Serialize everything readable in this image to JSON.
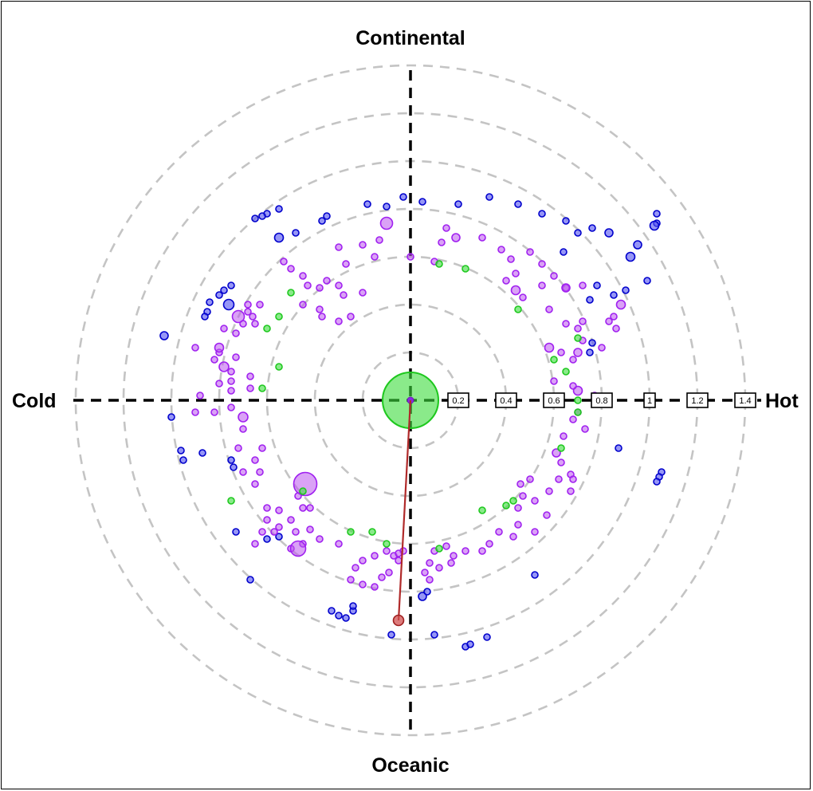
{
  "chart_data": {
    "type": "scatter",
    "title": "",
    "axis_labels": {
      "top": "Continental",
      "bottom": "Oceanic",
      "left": "Cold",
      "right": "Hot"
    },
    "radial_ticks": [
      "0.2",
      "0.4",
      "0.6",
      "0.8",
      "1",
      "1.2",
      "1.4"
    ],
    "radial_tick_values": [
      0.2,
      0.4,
      0.6,
      0.8,
      1.0,
      1.2,
      1.4
    ],
    "rmax": 1.4,
    "grid": true,
    "colors": {
      "purple": "#bb55ee",
      "blue": "#2b2be8",
      "green": "#3cdc3c",
      "red": "#d05050",
      "grid": "#c4c4c4",
      "redline": "#b02a2a"
    },
    "highlight": {
      "origin": [
        0,
        0
      ],
      "point": [
        -0.05,
        -0.92
      ],
      "color": "red"
    },
    "center_marker": {
      "x": 0,
      "y": 0,
      "color": "green",
      "size": 70
    },
    "points": [
      [
        -0.65,
        0.76,
        "blue",
        7
      ],
      [
        -0.6,
        0.78,
        "blue",
        7
      ],
      [
        -0.62,
        0.77,
        "blue",
        7
      ],
      [
        -0.55,
        0.8,
        "blue",
        7
      ],
      [
        -0.18,
        0.82,
        "blue",
        7
      ],
      [
        -0.1,
        0.81,
        "blue",
        7
      ],
      [
        -0.03,
        0.85,
        "blue",
        7
      ],
      [
        0.05,
        0.83,
        "blue",
        7
      ],
      [
        0.2,
        0.82,
        "blue",
        7
      ],
      [
        0.33,
        0.85,
        "blue",
        7
      ],
      [
        0.45,
        0.82,
        "blue",
        7
      ],
      [
        0.55,
        0.78,
        "blue",
        7
      ],
      [
        0.65,
        0.75,
        "blue",
        7
      ],
      [
        0.7,
        0.7,
        "blue",
        7
      ],
      [
        0.76,
        0.72,
        "blue",
        7
      ],
      [
        0.64,
        0.62,
        "blue",
        7
      ],
      [
        0.83,
        0.7,
        "blue",
        9
      ],
      [
        0.95,
        0.65,
        "blue",
        9
      ],
      [
        1.03,
        0.74,
        "blue",
        7
      ],
      [
        1.03,
        0.78,
        "blue",
        7
      ],
      [
        1.02,
        0.73,
        "blue",
        10
      ],
      [
        0.92,
        0.6,
        "blue",
        10
      ],
      [
        0.99,
        0.5,
        "blue",
        7
      ],
      [
        0.78,
        0.48,
        "blue",
        7
      ],
      [
        0.75,
        0.42,
        "blue",
        7
      ],
      [
        0.85,
        0.44,
        "blue",
        7
      ],
      [
        0.9,
        0.46,
        "blue",
        7
      ],
      [
        0.76,
        0.24,
        "blue",
        7
      ],
      [
        0.75,
        0.2,
        "blue",
        7
      ],
      [
        -0.35,
        0.77,
        "blue",
        7
      ],
      [
        -0.37,
        0.75,
        "blue",
        7
      ],
      [
        -0.48,
        0.7,
        "blue",
        7
      ],
      [
        -0.55,
        0.68,
        "blue",
        10
      ],
      [
        -0.75,
        0.48,
        "blue",
        7
      ],
      [
        -0.8,
        0.44,
        "blue",
        7
      ],
      [
        -0.85,
        0.37,
        "blue",
        7
      ],
      [
        -0.86,
        0.35,
        "blue",
        7
      ],
      [
        -0.84,
        0.41,
        "blue",
        7
      ],
      [
        -0.78,
        0.46,
        "blue",
        7
      ],
      [
        -0.76,
        0.4,
        "blue",
        12
      ],
      [
        -1.03,
        0.27,
        "blue",
        9
      ],
      [
        -1.0,
        -0.07,
        "blue",
        7
      ],
      [
        -0.96,
        -0.21,
        "blue",
        7
      ],
      [
        -0.95,
        -0.25,
        "blue",
        7
      ],
      [
        -0.87,
        -0.22,
        "blue",
        7
      ],
      [
        -0.75,
        -0.25,
        "blue",
        7
      ],
      [
        -0.74,
        -0.28,
        "blue",
        7
      ],
      [
        -0.73,
        -0.55,
        "blue",
        7
      ],
      [
        -0.6,
        -0.58,
        "blue",
        7
      ],
      [
        -0.55,
        -0.57,
        "blue",
        7
      ],
      [
        -0.67,
        -0.75,
        "blue",
        7
      ],
      [
        -0.33,
        -0.88,
        "blue",
        7
      ],
      [
        -0.3,
        -0.9,
        "blue",
        7
      ],
      [
        -0.27,
        -0.91,
        "blue",
        7
      ],
      [
        -0.24,
        -0.88,
        "blue",
        7
      ],
      [
        -0.24,
        -0.86,
        "blue",
        7
      ],
      [
        -0.08,
        -0.98,
        "blue",
        7
      ],
      [
        0.05,
        -0.82,
        "blue",
        9
      ],
      [
        0.07,
        -0.8,
        "blue",
        7
      ],
      [
        0.1,
        -0.98,
        "blue",
        7
      ],
      [
        0.23,
        -1.03,
        "blue",
        7
      ],
      [
        0.25,
        -1.02,
        "blue",
        7
      ],
      [
        0.32,
        -0.99,
        "blue",
        7
      ],
      [
        0.52,
        -0.73,
        "blue",
        7
      ],
      [
        0.87,
        -0.2,
        "blue",
        7
      ],
      [
        1.05,
        -0.3,
        "blue",
        7
      ],
      [
        1.04,
        -0.32,
        "blue",
        7
      ],
      [
        1.03,
        -0.34,
        "blue",
        7
      ],
      [
        -0.1,
        0.74,
        "purple",
        14
      ],
      [
        0.19,
        0.68,
        "purple",
        9
      ],
      [
        0.15,
        0.72,
        "purple",
        7
      ],
      [
        0.13,
        0.66,
        "purple",
        7
      ],
      [
        0.3,
        0.68,
        "purple",
        7
      ],
      [
        0.38,
        0.63,
        "purple",
        7
      ],
      [
        0.42,
        0.59,
        "purple",
        7
      ],
      [
        0.5,
        0.62,
        "purple",
        7
      ],
      [
        0.55,
        0.57,
        "purple",
        7
      ],
      [
        0.44,
        0.53,
        "purple",
        7
      ],
      [
        0.4,
        0.5,
        "purple",
        7
      ],
      [
        0.55,
        0.48,
        "purple",
        7
      ],
      [
        0.6,
        0.52,
        "purple",
        7
      ],
      [
        0.65,
        0.47,
        "purple",
        7
      ],
      [
        0.44,
        0.46,
        "purple",
        10
      ],
      [
        0.47,
        0.43,
        "purple",
        7
      ],
      [
        0.65,
        0.47,
        "purple",
        9
      ],
      [
        0.72,
        0.48,
        "purple",
        7
      ],
      [
        0.58,
        0.38,
        "purple",
        7
      ],
      [
        0.65,
        0.32,
        "purple",
        7
      ],
      [
        0.72,
        0.33,
        "purple",
        7
      ],
      [
        0.7,
        0.3,
        "purple",
        7
      ],
      [
        0.58,
        0.22,
        "purple",
        10
      ],
      [
        0.63,
        0.2,
        "purple",
        7
      ],
      [
        0.7,
        0.2,
        "purple",
        9
      ],
      [
        0.68,
        0.17,
        "purple",
        7
      ],
      [
        0.8,
        0.22,
        "purple",
        7
      ],
      [
        0.83,
        0.33,
        "purple",
        7
      ],
      [
        0.88,
        0.4,
        "purple",
        10
      ],
      [
        0.85,
        0.35,
        "purple",
        7
      ],
      [
        0.86,
        0.3,
        "purple",
        7
      ],
      [
        0.72,
        0.25,
        "purple",
        7
      ],
      [
        0.6,
        0.08,
        "purple",
        7
      ],
      [
        0.7,
        0.04,
        "purple",
        10
      ],
      [
        0.68,
        0.06,
        "purple",
        7
      ],
      [
        0.77,
        0.02,
        "purple",
        7
      ],
      [
        0.7,
        -0.05,
        "purple",
        7
      ],
      [
        0.68,
        -0.08,
        "purple",
        7
      ],
      [
        0.73,
        -0.12,
        "purple",
        7
      ],
      [
        0.64,
        -0.15,
        "purple",
        7
      ],
      [
        0.61,
        -0.22,
        "purple",
        9
      ],
      [
        0.63,
        -0.26,
        "purple",
        7
      ],
      [
        0.67,
        -0.31,
        "purple",
        7
      ],
      [
        0.62,
        -0.33,
        "purple",
        7
      ],
      [
        0.68,
        -0.33,
        "purple",
        7
      ],
      [
        0.67,
        -0.38,
        "purple",
        7
      ],
      [
        0.58,
        -0.38,
        "purple",
        7
      ],
      [
        0.52,
        -0.42,
        "purple",
        7
      ],
      [
        0.47,
        -0.4,
        "purple",
        7
      ],
      [
        0.46,
        -0.35,
        "purple",
        7
      ],
      [
        0.5,
        -0.33,
        "purple",
        7
      ],
      [
        0.45,
        -0.45,
        "purple",
        7
      ],
      [
        0.57,
        -0.48,
        "purple",
        7
      ],
      [
        0.52,
        -0.55,
        "purple",
        7
      ],
      [
        0.45,
        -0.52,
        "purple",
        7
      ],
      [
        0.43,
        -0.57,
        "purple",
        7
      ],
      [
        0.37,
        -0.55,
        "purple",
        7
      ],
      [
        0.33,
        -0.6,
        "purple",
        7
      ],
      [
        0.3,
        -0.63,
        "purple",
        7
      ],
      [
        0.23,
        -0.63,
        "purple",
        7
      ],
      [
        0.18,
        -0.65,
        "purple",
        7
      ],
      [
        0.15,
        -0.61,
        "purple",
        7
      ],
      [
        0.1,
        -0.63,
        "purple",
        7
      ],
      [
        0.08,
        -0.68,
        "purple",
        7
      ],
      [
        0.12,
        -0.7,
        "purple",
        7
      ],
      [
        0.17,
        -0.68,
        "purple",
        7
      ],
      [
        0.06,
        -0.72,
        "purple",
        7
      ],
      [
        0.08,
        -0.75,
        "purple",
        7
      ],
      [
        -0.03,
        -0.63,
        "purple",
        7
      ],
      [
        -0.07,
        -0.65,
        "purple",
        7
      ],
      [
        -0.1,
        -0.63,
        "purple",
        7
      ],
      [
        -0.05,
        -0.67,
        "purple",
        7
      ],
      [
        -0.15,
        -0.65,
        "purple",
        7
      ],
      [
        -0.2,
        -0.67,
        "purple",
        7
      ],
      [
        -0.23,
        -0.7,
        "purple",
        7
      ],
      [
        -0.25,
        -0.75,
        "purple",
        7
      ],
      [
        -0.2,
        -0.77,
        "purple",
        7
      ],
      [
        -0.15,
        -0.78,
        "purple",
        7
      ],
      [
        -0.12,
        -0.74,
        "purple",
        7
      ],
      [
        -0.09,
        -0.72,
        "purple",
        7
      ],
      [
        -0.05,
        -0.64,
        "purple",
        7
      ],
      [
        -0.3,
        -0.6,
        "purple",
        7
      ],
      [
        -0.38,
        -0.58,
        "purple",
        7
      ],
      [
        -0.42,
        -0.54,
        "purple",
        7
      ],
      [
        -0.45,
        -0.6,
        "purple",
        7
      ],
      [
        -0.48,
        -0.55,
        "purple",
        7
      ],
      [
        -0.5,
        -0.62,
        "purple",
        7
      ],
      [
        -0.55,
        -0.53,
        "purple",
        7
      ],
      [
        -0.6,
        -0.5,
        "purple",
        7
      ],
      [
        -0.5,
        -0.5,
        "purple",
        7
      ],
      [
        -0.57,
        -0.55,
        "purple",
        7
      ],
      [
        -0.62,
        -0.55,
        "purple",
        7
      ],
      [
        -0.65,
        -0.6,
        "purple",
        7
      ],
      [
        -0.45,
        -0.45,
        "purple",
        7
      ],
      [
        -0.55,
        -0.46,
        "purple",
        7
      ],
      [
        -0.6,
        -0.45,
        "purple",
        7
      ],
      [
        -0.47,
        -0.62,
        "purple",
        18
      ],
      [
        -0.44,
        -0.35,
        "purple",
        28
      ],
      [
        -0.42,
        -0.45,
        "purple",
        7
      ],
      [
        -0.47,
        -0.4,
        "purple",
        7
      ],
      [
        -0.65,
        -0.35,
        "purple",
        7
      ],
      [
        -0.63,
        -0.3,
        "purple",
        7
      ],
      [
        -0.7,
        -0.3,
        "purple",
        7
      ],
      [
        -0.65,
        -0.25,
        "purple",
        7
      ],
      [
        -0.72,
        -0.2,
        "purple",
        7
      ],
      [
        -0.62,
        -0.2,
        "purple",
        7
      ],
      [
        -0.7,
        -0.12,
        "purple",
        7
      ],
      [
        -0.7,
        -0.07,
        "purple",
        11
      ],
      [
        -0.75,
        -0.03,
        "purple",
        7
      ],
      [
        -0.82,
        -0.05,
        "purple",
        7
      ],
      [
        -0.9,
        -0.05,
        "purple",
        7
      ],
      [
        -0.75,
        0.04,
        "purple",
        7
      ],
      [
        -0.67,
        0.05,
        "purple",
        7
      ],
      [
        -0.8,
        0.07,
        "purple",
        7
      ],
      [
        -0.75,
        0.08,
        "purple",
        7
      ],
      [
        -0.88,
        0.02,
        "purple",
        7
      ],
      [
        -0.78,
        0.14,
        "purple",
        11
      ],
      [
        -0.82,
        0.17,
        "purple",
        7
      ],
      [
        -0.75,
        0.12,
        "purple",
        7
      ],
      [
        -0.73,
        0.18,
        "purple",
        7
      ],
      [
        -0.67,
        0.1,
        "purple",
        7
      ],
      [
        -0.8,
        0.2,
        "purple",
        7
      ],
      [
        -0.8,
        0.22,
        "purple",
        10
      ],
      [
        -0.9,
        0.22,
        "purple",
        7
      ],
      [
        -0.73,
        0.28,
        "purple",
        7
      ],
      [
        -0.78,
        0.3,
        "purple",
        7
      ],
      [
        -0.72,
        0.35,
        "purple",
        14
      ],
      [
        -0.7,
        0.32,
        "purple",
        7
      ],
      [
        -0.68,
        0.37,
        "purple",
        7
      ],
      [
        -0.66,
        0.35,
        "purple",
        7
      ],
      [
        -0.68,
        0.4,
        "purple",
        7
      ],
      [
        -0.63,
        0.4,
        "purple",
        7
      ],
      [
        -0.65,
        0.32,
        "purple",
        7
      ],
      [
        -0.53,
        0.58,
        "purple",
        7
      ],
      [
        -0.5,
        0.55,
        "purple",
        7
      ],
      [
        -0.45,
        0.52,
        "purple",
        7
      ],
      [
        -0.43,
        0.48,
        "purple",
        7
      ],
      [
        -0.38,
        0.47,
        "purple",
        7
      ],
      [
        -0.35,
        0.5,
        "purple",
        7
      ],
      [
        -0.3,
        0.48,
        "purple",
        7
      ],
      [
        -0.28,
        0.44,
        "purple",
        7
      ],
      [
        -0.2,
        0.45,
        "purple",
        7
      ],
      [
        -0.45,
        0.4,
        "purple",
        7
      ],
      [
        -0.38,
        0.38,
        "purple",
        7
      ],
      [
        -0.37,
        0.35,
        "purple",
        7
      ],
      [
        -0.3,
        0.33,
        "purple",
        7
      ],
      [
        -0.25,
        0.35,
        "purple",
        7
      ],
      [
        -0.15,
        0.6,
        "purple",
        7
      ],
      [
        -0.27,
        0.57,
        "purple",
        7
      ],
      [
        -0.3,
        0.64,
        "purple",
        7
      ],
      [
        -0.2,
        0.65,
        "purple",
        7
      ],
      [
        -0.13,
        0.67,
        "purple",
        7
      ],
      [
        0.0,
        0.6,
        "purple",
        7
      ],
      [
        0.1,
        0.58,
        "purple",
        7
      ]
    ],
    "green_points": [
      [
        -0.5,
        0.45,
        "green",
        7
      ],
      [
        -0.55,
        0.35,
        "green",
        7
      ],
      [
        -0.6,
        0.3,
        "green",
        7
      ],
      [
        -0.55,
        0.14,
        "green",
        7
      ],
      [
        -0.62,
        0.05,
        "green",
        7
      ],
      [
        -0.45,
        -0.38,
        "green",
        7
      ],
      [
        -0.75,
        -0.42,
        "green",
        7
      ],
      [
        -0.25,
        -0.55,
        "green",
        7
      ],
      [
        -0.16,
        -0.55,
        "green",
        7
      ],
      [
        -0.1,
        -0.6,
        "green",
        7
      ],
      [
        0.12,
        -0.62,
        "green",
        7
      ],
      [
        0.3,
        -0.46,
        "green",
        7
      ],
      [
        0.4,
        -0.44,
        "green",
        7
      ],
      [
        0.43,
        -0.42,
        "green",
        7
      ],
      [
        0.63,
        -0.2,
        "green",
        7
      ],
      [
        0.7,
        -0.05,
        "green",
        7
      ],
      [
        0.7,
        0.0,
        "green",
        7
      ],
      [
        0.65,
        0.12,
        "green",
        7
      ],
      [
        0.7,
        0.26,
        "green",
        7
      ],
      [
        0.6,
        0.17,
        "green",
        7
      ],
      [
        0.45,
        0.38,
        "green",
        7
      ],
      [
        0.23,
        0.55,
        "green",
        7
      ],
      [
        0.12,
        0.57,
        "green",
        7
      ]
    ]
  }
}
